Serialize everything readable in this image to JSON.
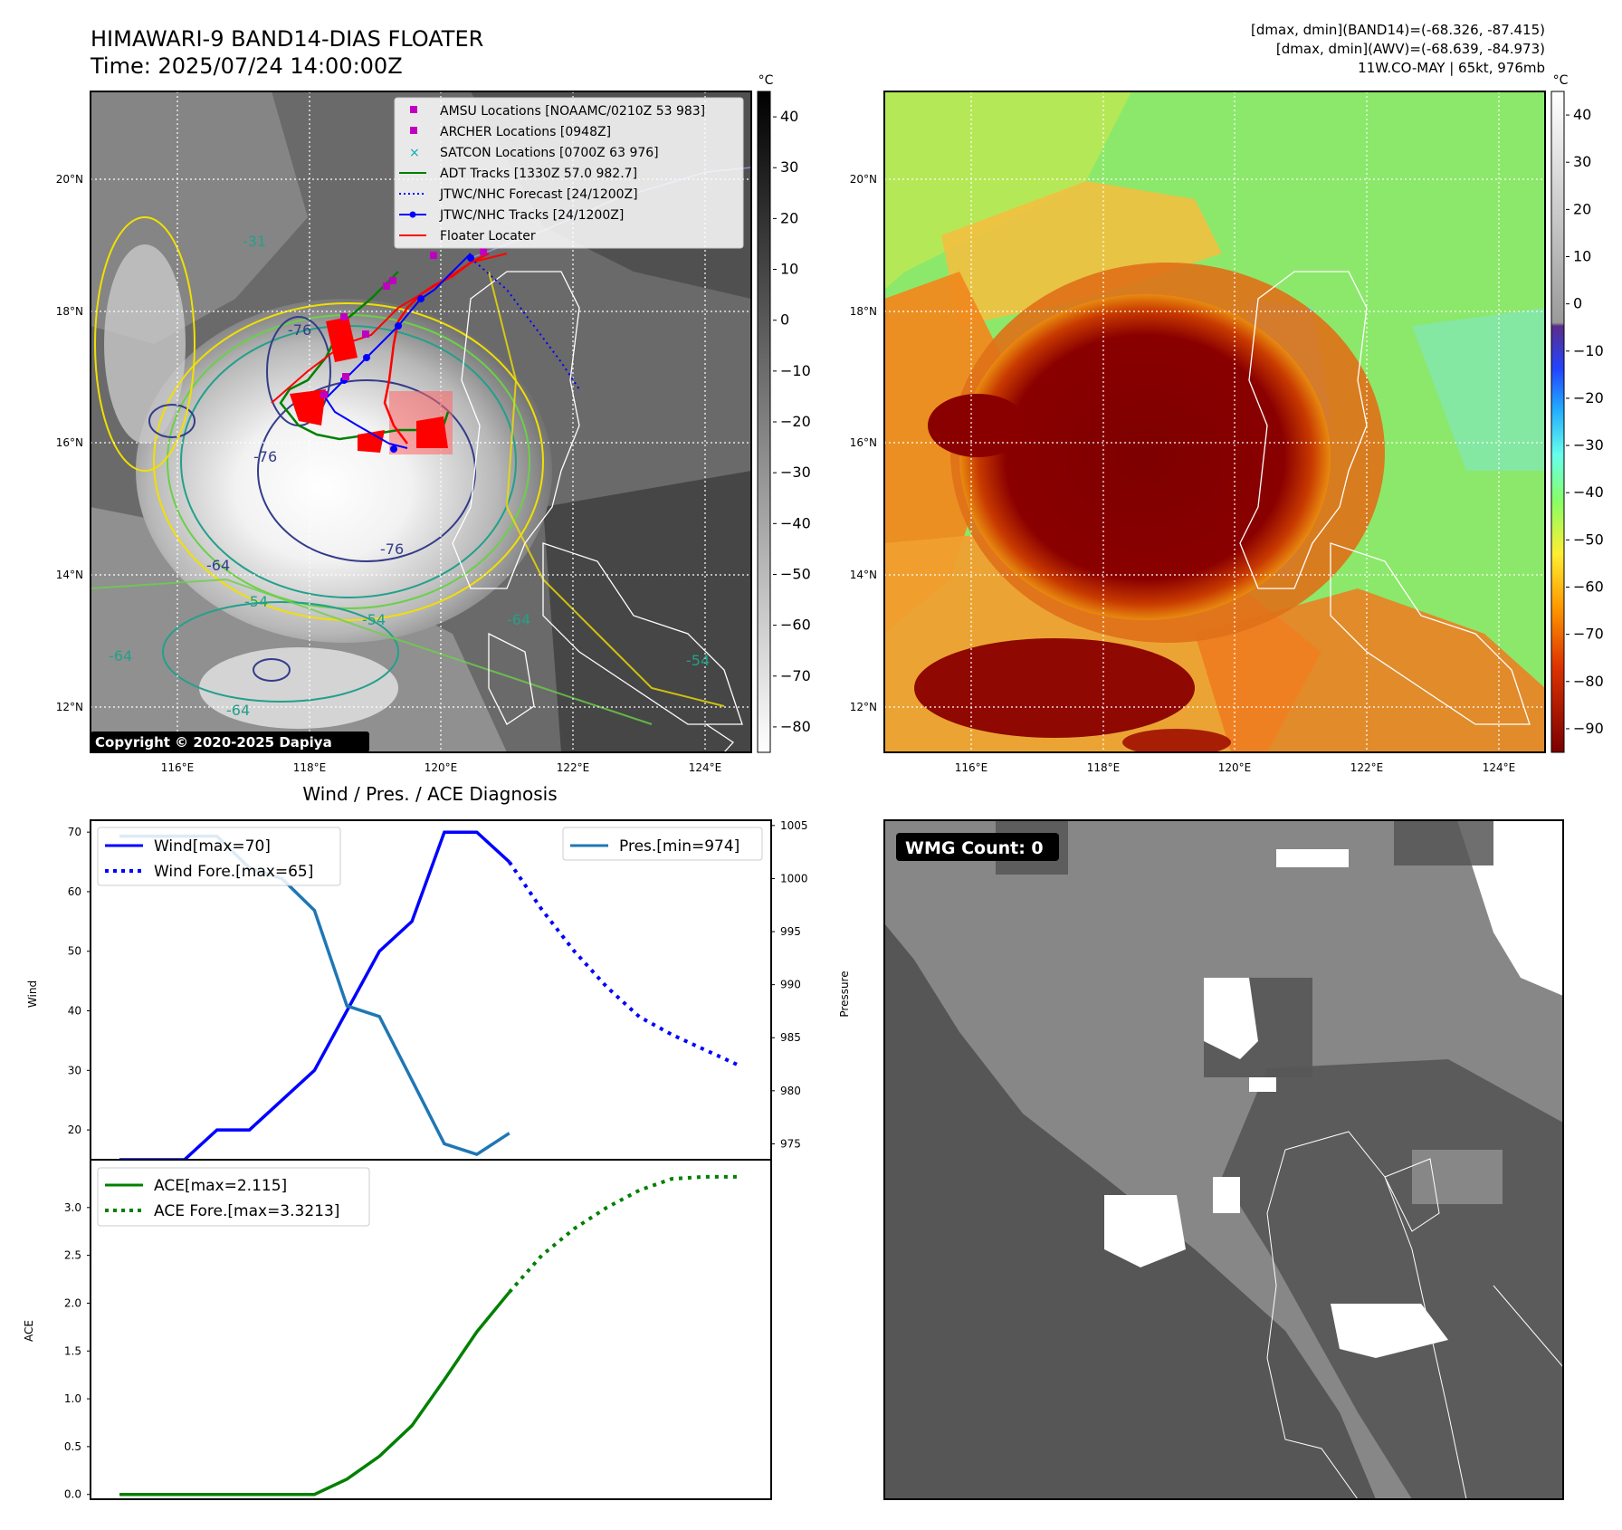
{
  "header": {
    "title_line1": "HIMAWARI-9 BAND14-DIAS FLOATER",
    "title_line2": "Time: 2025/07/24 14:00:00Z",
    "stats_line1": "[dmax, dmin](BAND14)=(-68.326, -87.415)",
    "stats_line2": "[dmax, dmin](AWV)=(-68.639, -84.973)",
    "stats_line3": "11W.CO-MAY | 65kt, 976mb"
  },
  "map_left": {
    "colorbar_unit": "°C",
    "colorbar_ticks": [
      "40",
      "30",
      "20",
      "10",
      "0",
      "−10",
      "−20",
      "−30",
      "−40",
      "−50",
      "−60",
      "−70",
      "−80"
    ],
    "lat_labels": [
      "20°N",
      "18°N",
      "16°N",
      "14°N",
      "12°N"
    ],
    "lon_labels": [
      "116°E",
      "118°E",
      "120°E",
      "122°E",
      "124°E"
    ],
    "copyright": "Copyright © 2020-2025 Dapiya",
    "contour_labels": [
      "-31",
      "-54",
      "-64",
      "-76",
      "-64",
      "-54",
      "-64",
      "-76",
      "-76",
      "-64",
      "-54"
    ],
    "legend": [
      {
        "label": "AMSU Locations [NOAAMC/0210Z 53 983]",
        "color": "#c000c0",
        "marker": "square"
      },
      {
        "label": "ARCHER Locations [0948Z]",
        "color": "#c000c0",
        "marker": "square"
      },
      {
        "label": "SATCON Locations [0700Z 63 976]",
        "color": "#00b0b0",
        "marker": "x"
      },
      {
        "label": "ADT Tracks [1330Z 57.0 982.7]",
        "color": "#008000",
        "marker": "line"
      },
      {
        "label": "JTWC/NHC Forecast [24/1200Z]",
        "color": "#0000ff",
        "marker": "dotted"
      },
      {
        "label": "JTWC/NHC Tracks [24/1200Z]",
        "color": "#0000ff",
        "marker": "line-dot"
      },
      {
        "label": "Floater Locater",
        "color": "#ff0000",
        "marker": "line"
      }
    ]
  },
  "map_right": {
    "colorbar_unit": "°C",
    "colorbar_ticks": [
      "40",
      "30",
      "20",
      "10",
      "0",
      "−10",
      "−20",
      "−30",
      "−40",
      "−50",
      "−60",
      "−70",
      "−80",
      "−90"
    ],
    "lat_labels": [
      "20°N",
      "18°N",
      "16°N",
      "14°N",
      "12°N"
    ],
    "lon_labels": [
      "116°E",
      "118°E",
      "120°E",
      "122°E",
      "124°E"
    ]
  },
  "wmg_panel": {
    "badge": "WMG Count: 0"
  },
  "chart_data": [
    {
      "type": "line",
      "title": "Wind / Pres. / ACE Diagnosis",
      "ylabel": "Wind",
      "ylabel_right": "Pressure",
      "ylim": [
        15,
        72
      ],
      "ylim_right": [
        973.5,
        1005.5
      ],
      "yticks": [
        20,
        30,
        40,
        50,
        60,
        70
      ],
      "yticks_right": [
        975,
        980,
        985,
        990,
        995,
        1000,
        1005
      ],
      "x": [
        0,
        1,
        2,
        3,
        4,
        5,
        6,
        7,
        8,
        9,
        10,
        11,
        12,
        13,
        14,
        15,
        16,
        17,
        18,
        19
      ],
      "series": [
        {
          "name": "Wind[max=70]",
          "axis": "left",
          "style": "solid",
          "color": "#0000ff",
          "x": [
            0,
            1,
            2,
            3,
            4,
            5,
            6,
            7,
            8,
            9,
            10,
            11,
            12
          ],
          "values": [
            15,
            15,
            15,
            20,
            20,
            25,
            30,
            40,
            50,
            55,
            70,
            70,
            65
          ]
        },
        {
          "name": "Wind Fore.[max=65]",
          "axis": "left",
          "style": "dotted",
          "color": "#0000ff",
          "x": [
            12,
            13,
            14,
            15,
            16,
            17,
            18,
            19
          ],
          "values": [
            65,
            57,
            50,
            44,
            39,
            36,
            33.5,
            31
          ]
        },
        {
          "name": "Pres.[min=974]",
          "axis": "right",
          "style": "solid",
          "color": "#1f77b4",
          "x": [
            0,
            1,
            2,
            3,
            4,
            5,
            6,
            7,
            8,
            9,
            10,
            11,
            12
          ],
          "values": [
            1004,
            1004,
            1004,
            1004,
            1001,
            1000,
            997,
            988,
            987,
            981,
            975,
            974,
            976
          ]
        }
      ]
    },
    {
      "type": "line",
      "ylabel": "ACE",
      "ylim": [
        -0.05,
        3.5
      ],
      "yticks": [
        0.0,
        0.5,
        1.0,
        1.5,
        2.0,
        2.5,
        3.0
      ],
      "x": [
        0,
        1,
        2,
        3,
        4,
        5,
        6,
        7,
        8,
        9,
        10,
        11,
        12,
        13,
        14,
        15,
        16,
        17,
        18,
        19
      ],
      "series": [
        {
          "name": "ACE[max=2.115]",
          "style": "solid",
          "color": "#008000",
          "x": [
            0,
            1,
            2,
            3,
            4,
            5,
            6,
            7,
            8,
            9,
            10,
            11,
            12
          ],
          "values": [
            0,
            0,
            0,
            0,
            0,
            0,
            0,
            0.16,
            0.4,
            0.72,
            1.2,
            1.7,
            2.115
          ]
        },
        {
          "name": "ACE Fore.[max=3.3213]",
          "style": "dotted",
          "color": "#008000",
          "x": [
            12,
            13,
            14,
            15,
            16,
            17,
            18,
            19
          ],
          "values": [
            2.115,
            2.5,
            2.78,
            3.0,
            3.18,
            3.3,
            3.3213,
            3.3213
          ]
        }
      ]
    }
  ]
}
